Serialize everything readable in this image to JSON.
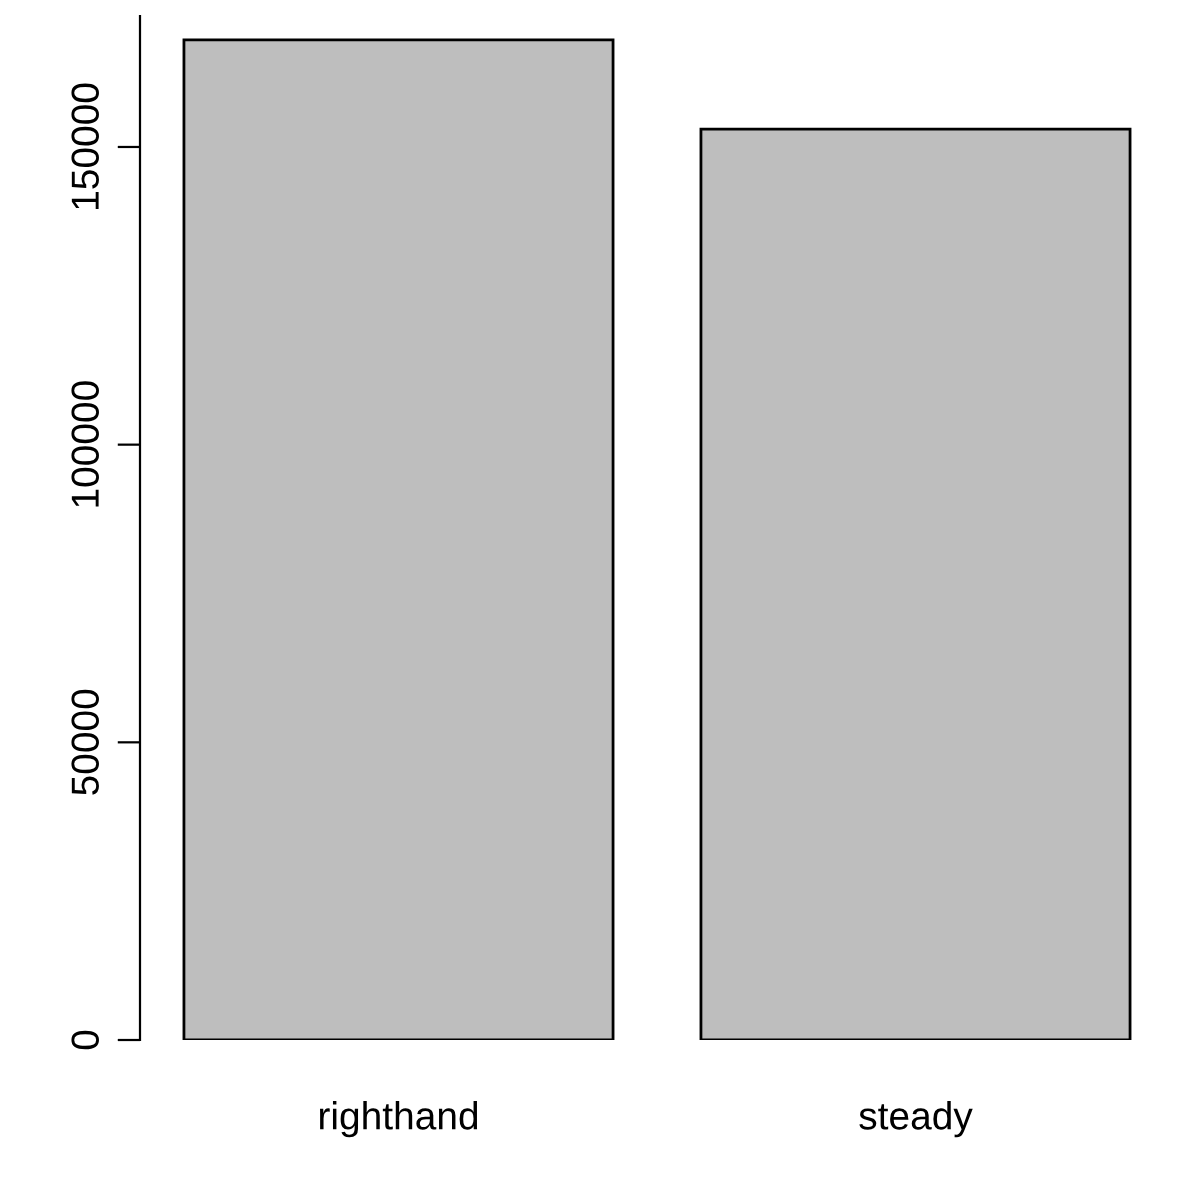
{
  "chart_data": {
    "type": "bar",
    "categories": [
      "righthand",
      "steady"
    ],
    "values": [
      168000,
      153000
    ],
    "color": "#bebebe",
    "ylim": [
      0,
      172000
    ],
    "yticks": [
      0,
      50000,
      100000,
      150000
    ],
    "grid": false
  }
}
